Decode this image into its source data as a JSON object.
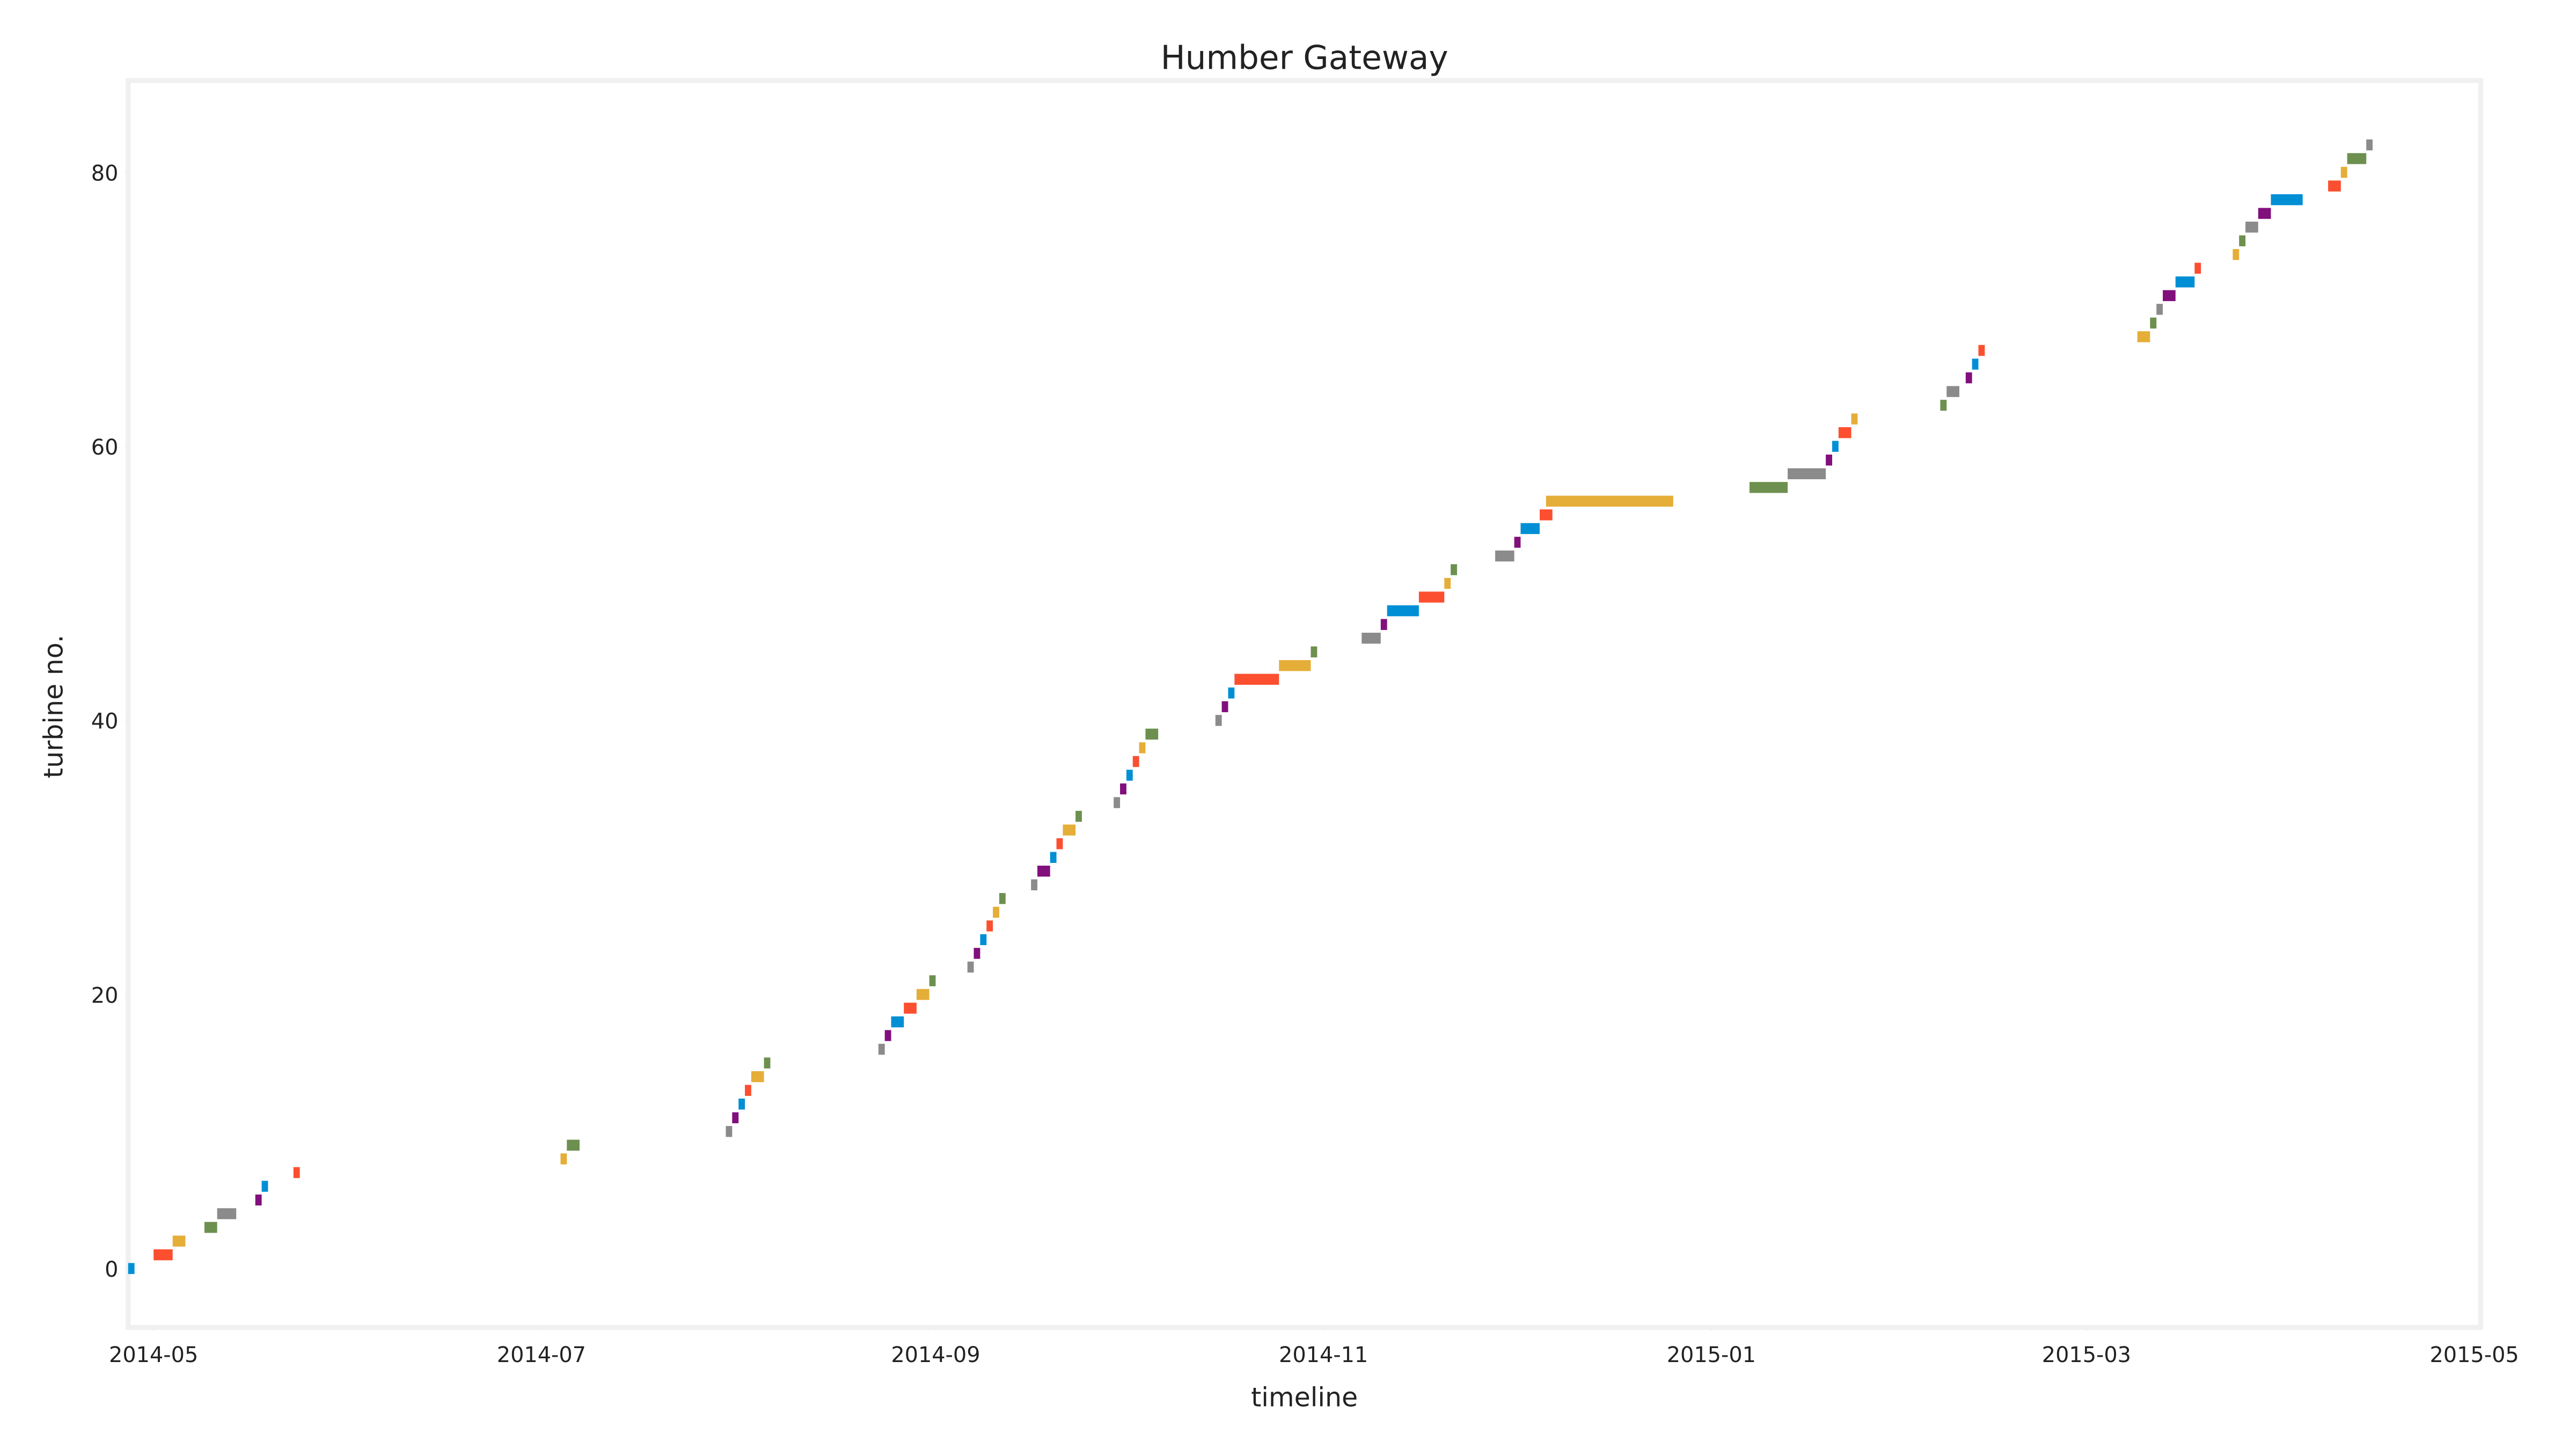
{
  "chart_data": {
    "type": "gantt",
    "title": "Humber Gateway",
    "xlabel": "timeline",
    "ylabel": "turbine no.",
    "xlim": [
      "2014-04-27",
      "2015-05-02"
    ],
    "ylim": [
      -4.3,
      86.7
    ],
    "xticks": [
      {
        "value": "2014-05-01",
        "label": "2014-05"
      },
      {
        "value": "2014-07-01",
        "label": "2014-07"
      },
      {
        "value": "2014-09-01",
        "label": "2014-09"
      },
      {
        "value": "2014-11-01",
        "label": "2014-11"
      },
      {
        "value": "2015-01-01",
        "label": "2015-01"
      },
      {
        "value": "2015-03-01",
        "label": "2015-03"
      },
      {
        "value": "2015-05-01",
        "label": "2015-05"
      }
    ],
    "yticks": [
      0,
      20,
      40,
      60,
      80
    ],
    "colors": [
      "#008fd5",
      "#fc4f30",
      "#e5ae38",
      "#6d904f",
      "#8b8b8b",
      "#810f7c"
    ],
    "y": [
      0,
      1,
      2,
      3,
      4,
      5,
      6,
      7,
      8,
      9,
      10,
      11,
      12,
      13,
      14,
      15,
      16,
      17,
      18,
      19,
      20,
      21,
      22,
      23,
      24,
      25,
      26,
      27,
      28,
      29,
      30,
      31,
      32,
      33,
      34,
      35,
      36,
      37,
      38,
      39,
      40,
      41,
      42,
      43,
      44,
      45,
      46,
      47,
      48,
      49,
      50,
      51,
      52,
      53,
      54,
      55,
      56,
      57,
      58,
      59,
      60,
      61,
      62,
      63,
      64,
      65,
      66,
      67,
      68,
      69,
      70,
      71,
      72,
      73,
      74,
      75,
      76,
      77,
      78,
      79,
      80,
      81,
      82
    ],
    "start": [
      "2014-04-27",
      "2014-05-01",
      "2014-05-04",
      "2014-05-09",
      "2014-05-11",
      "2014-05-17",
      "2014-05-18",
      "2014-05-23",
      "2014-07-04",
      "2014-07-05",
      "2014-07-30",
      "2014-07-31",
      "2014-08-01",
      "2014-08-02",
      "2014-08-03",
      "2014-08-05",
      "2014-08-23",
      "2014-08-24",
      "2014-08-25",
      "2014-08-27",
      "2014-08-29",
      "2014-08-31",
      "2014-09-06",
      "2014-09-07",
      "2014-09-08",
      "2014-09-09",
      "2014-09-10",
      "2014-09-11",
      "2014-09-16",
      "2014-09-17",
      "2014-09-19",
      "2014-09-20",
      "2014-09-21",
      "2014-09-23",
      "2014-09-29",
      "2014-09-30",
      "2014-10-01",
      "2014-10-02",
      "2014-10-03",
      "2014-10-04",
      "2014-10-15",
      "2014-10-16",
      "2014-10-17",
      "2014-10-18",
      "2014-10-25",
      "2014-10-30",
      "2014-11-07",
      "2014-11-10",
      "2014-11-11",
      "2014-11-16",
      "2014-11-20",
      "2014-11-21",
      "2014-11-28",
      "2014-12-01",
      "2014-12-02",
      "2014-12-05",
      "2014-12-06",
      "2015-01-07",
      "2015-01-13",
      "2015-01-19",
      "2015-01-20",
      "2015-01-21",
      "2015-01-23",
      "2015-02-06",
      "2015-02-07",
      "2015-02-10",
      "2015-02-11",
      "2015-02-12",
      "2015-03-09",
      "2015-03-11",
      "2015-03-12",
      "2015-03-13",
      "2015-03-15",
      "2015-03-18",
      "2015-03-24",
      "2015-03-25",
      "2015-03-26",
      "2015-03-28",
      "2015-03-30",
      "2015-04-08",
      "2015-04-10",
      "2015-04-11",
      "2015-04-14"
    ],
    "end": [
      "2014-04-28",
      "2014-05-04",
      "2014-05-06",
      "2014-05-11",
      "2014-05-14",
      "2014-05-18",
      "2014-05-19",
      "2014-05-24",
      "2014-07-05",
      "2014-07-07",
      "2014-07-31",
      "2014-08-01",
      "2014-08-02",
      "2014-08-03",
      "2014-08-05",
      "2014-08-06",
      "2014-08-24",
      "2014-08-25",
      "2014-08-27",
      "2014-08-29",
      "2014-08-31",
      "2014-09-01",
      "2014-09-07",
      "2014-09-08",
      "2014-09-09",
      "2014-09-10",
      "2014-09-11",
      "2014-09-12",
      "2014-09-17",
      "2014-09-19",
      "2014-09-20",
      "2014-09-21",
      "2014-09-23",
      "2014-09-24",
      "2014-09-30",
      "2014-10-01",
      "2014-10-02",
      "2014-10-03",
      "2014-10-04",
      "2014-10-06",
      "2014-10-16",
      "2014-10-17",
      "2014-10-18",
      "2014-10-25",
      "2014-10-30",
      "2014-10-31",
      "2014-11-10",
      "2014-11-11",
      "2014-11-16",
      "2014-11-20",
      "2014-11-21",
      "2014-11-22",
      "2014-12-01",
      "2014-12-02",
      "2014-12-05",
      "2014-12-07",
      "2014-12-26",
      "2015-01-13",
      "2015-01-19",
      "2015-01-20",
      "2015-01-21",
      "2015-01-23",
      "2015-01-24",
      "2015-02-07",
      "2015-02-09",
      "2015-02-11",
      "2015-02-12",
      "2015-02-13",
      "2015-03-11",
      "2015-03-12",
      "2015-03-13",
      "2015-03-15",
      "2015-03-18",
      "2015-03-19",
      "2015-03-25",
      "2015-03-26",
      "2015-03-28",
      "2015-03-30",
      "2015-04-04",
      "2015-04-10",
      "2015-04-11",
      "2015-04-14",
      "2015-04-15"
    ]
  }
}
